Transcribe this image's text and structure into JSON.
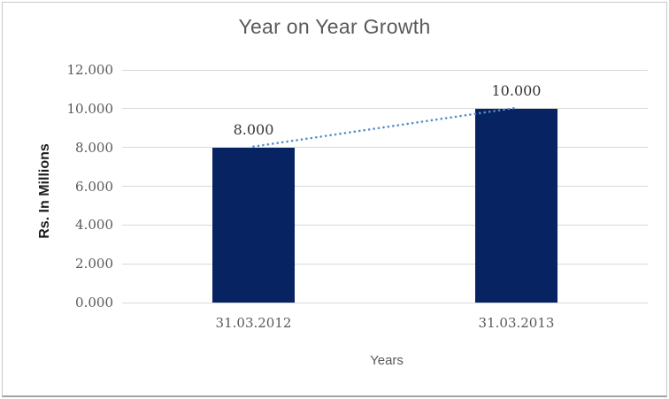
{
  "window": {
    "background_color": "#ffffff",
    "frame_border_color": "#c9c9c9",
    "frame_bottom_border_color": "#a3a3a3"
  },
  "chart_data": {
    "type": "bar",
    "title": "Year on Year Growth",
    "xlabel": "Years",
    "ylabel": "Rs. In Millions",
    "categories": [
      "31.03.2012",
      "31.03.2013"
    ],
    "values": [
      8,
      10
    ],
    "data_labels": [
      "8.000",
      "10.000"
    ],
    "ytick_values": [
      0,
      2,
      4,
      6,
      8,
      10,
      12
    ],
    "ytick_labels": [
      "0.000",
      "2.000",
      "4.000",
      "6.000",
      "8.000",
      "10.000",
      "12.000"
    ],
    "ylim": [
      0,
      12
    ],
    "grid": true,
    "legend": "none",
    "trendline": {
      "type": "dotted",
      "from": "31.03.2012",
      "to": "31.03.2013"
    },
    "colors": {
      "bar": "#082361",
      "trendline": "#568ccd",
      "gridline": "#d9d9d9",
      "title_text": "#595959",
      "tick_text": "#595959",
      "data_label_text": "#363636",
      "y_axis_title_text": "#1c1c1c"
    }
  }
}
